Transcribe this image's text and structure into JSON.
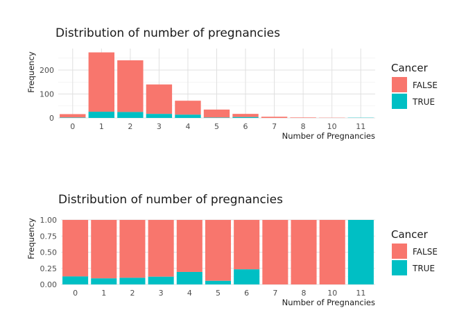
{
  "chart_data": [
    {
      "type": "bar",
      "stacked": true,
      "title": "Distribution of number of pregnancies",
      "xlabel": "Number of Pregnancies",
      "ylabel": "Frequency",
      "categories": [
        "0",
        "1",
        "2",
        "3",
        "4",
        "5",
        "6",
        "7",
        "8",
        "10",
        "11"
      ],
      "series": [
        {
          "name": "FALSE",
          "color": "#F8766D",
          "values": [
            14,
            248,
            216,
            123,
            58,
            33,
            13,
            5,
            2,
            1,
            0
          ]
        },
        {
          "name": "TRUE",
          "color": "#00BFC4",
          "values": [
            2,
            26,
            25,
            17,
            14,
            2,
            4,
            0,
            0,
            0,
            1
          ]
        }
      ],
      "ylim": [
        0,
        290
      ],
      "yticks": [
        0,
        100,
        200
      ],
      "ytick_labels": [
        "0",
        "100",
        "200"
      ],
      "grid": true,
      "legend": {
        "title": "Cancer",
        "position": "right"
      }
    },
    {
      "type": "bar",
      "stacked": true,
      "normalized": true,
      "title": "Distribution of number of pregnancies",
      "xlabel": "Number of Pregnancies",
      "ylabel": "Frequency",
      "categories": [
        "0",
        "1",
        "2",
        "3",
        "4",
        "5",
        "6",
        "7",
        "8",
        "10",
        "11"
      ],
      "series": [
        {
          "name": "FALSE",
          "color": "#F8766D",
          "values": [
            0.875,
            0.905,
            0.896,
            0.879,
            0.806,
            0.943,
            0.765,
            1.0,
            1.0,
            1.0,
            0.0
          ]
        },
        {
          "name": "TRUE",
          "color": "#00BFC4",
          "values": [
            0.125,
            0.095,
            0.104,
            0.121,
            0.194,
            0.057,
            0.235,
            0.0,
            0.0,
            0.0,
            1.0
          ]
        }
      ],
      "ylim": [
        0,
        1
      ],
      "yticks": [
        0,
        0.25,
        0.5,
        0.75,
        1.0
      ],
      "ytick_labels": [
        "0.00",
        "0.25",
        "0.50",
        "0.75",
        "1.00"
      ],
      "grid": true,
      "legend": {
        "title": "Cancer",
        "position": "right"
      }
    }
  ]
}
